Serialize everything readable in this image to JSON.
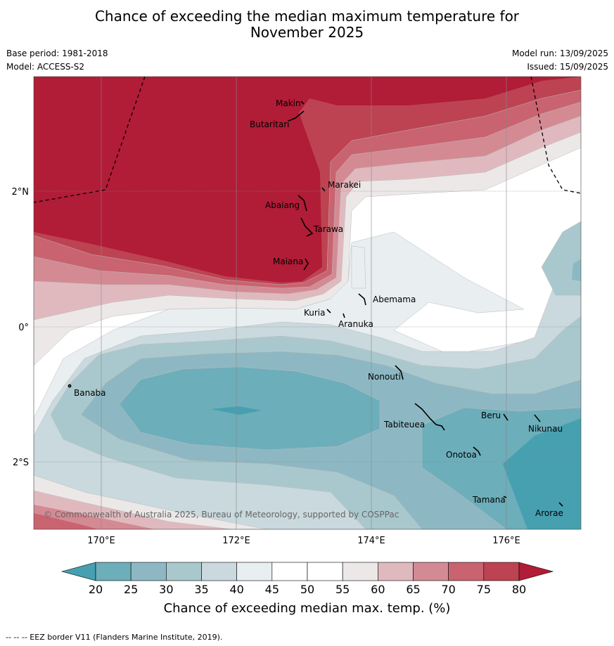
{
  "title_line1": "Chance of exceeding the median maximum temperature for",
  "title_line2": "November 2025",
  "base_period": "Base period: 1981-2018",
  "model": "Model: ACCESS-S2",
  "model_run": "Model run: 13/09/2025",
  "issued": "Issued: 15/09/2025",
  "copyright": "© Commonwealth of Australia 2025, Bureau of Meteorology, supported by COSPPac",
  "colorbar": {
    "label": "Chance of exceeding median max. temp. (%)",
    "ticks": [
      "20",
      "25",
      "30",
      "35",
      "40",
      "45",
      "50",
      "55",
      "60",
      "65",
      "70",
      "75",
      "80"
    ],
    "colors": [
      "#46a0b0",
      "#6caeba",
      "#8db8c3",
      "#a9c8ce",
      "#c9d9de",
      "#e9eef1",
      "#ffffff",
      "#ffffff",
      "#ece8e8",
      "#e0b9bf",
      "#d48a93",
      "#c9636f",
      "#bd4352",
      "#b11c37"
    ]
  },
  "axes": {
    "lon_labels": [
      "170°E",
      "172°E",
      "174°E",
      "176°E"
    ],
    "lat_labels": [
      "2°N",
      "0°",
      "2°S"
    ]
  },
  "places": [
    {
      "name": "Makin"
    },
    {
      "name": "Butaritari"
    },
    {
      "name": "Marakei"
    },
    {
      "name": "Abaiang"
    },
    {
      "name": "Tarawa"
    },
    {
      "name": "Maiana"
    },
    {
      "name": "Abemama"
    },
    {
      "name": "Kuria"
    },
    {
      "name": "Aranuka"
    },
    {
      "name": "Banaba"
    },
    {
      "name": "Nonouti"
    },
    {
      "name": "Tabiteuea"
    },
    {
      "name": "Beru"
    },
    {
      "name": "Nikunau"
    },
    {
      "name": "Onotoa"
    },
    {
      "name": "Tamana"
    },
    {
      "name": "Arorae"
    }
  ],
  "footer": "--  --  -- EEZ border V11 (Flanders Marine Institute, 2019)."
}
